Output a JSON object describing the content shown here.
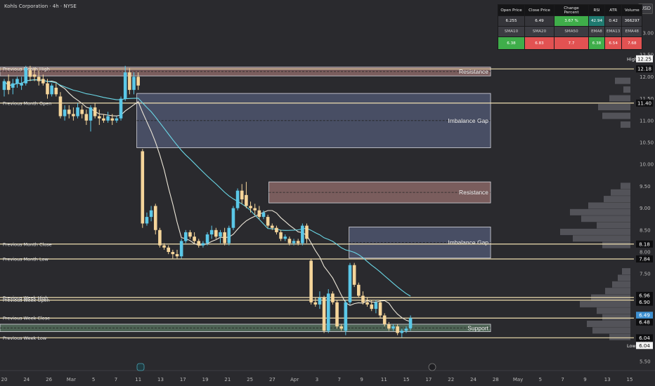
{
  "header": {
    "title": "Kohls Corporation · 4h · NYSE",
    "currency_label": "USD"
  },
  "stats_table": {
    "headers1": [
      "Open Price",
      "Close Price",
      "Change Percent",
      "RSI",
      "ATR",
      "Volume"
    ],
    "values1": [
      "6.255",
      "6.49",
      "3.67 %",
      "42.94",
      "0.42",
      "366297"
    ],
    "headers2": [
      "SMA10",
      "SMA20",
      "SMA50",
      "EMA8",
      "EMA13",
      "EMA48"
    ],
    "values2": [
      "6.38",
      "6.83",
      "7.7",
      "6.38",
      "6.54",
      "7.68"
    ]
  },
  "colors": {
    "background": "#2a2a2e",
    "bull": "#5bc8e8",
    "bear": "#f5d59a",
    "level_line": "#f0dfb0",
    "resistance_zone": "#c98f8b",
    "imbalance_zone": "#8291c9",
    "support_zone": "#6f9b7a",
    "sma_short": "#ece6d8",
    "sma_long": "#6ad7e6"
  },
  "chart_data": {
    "type": "candlestick",
    "ylim": [
      5.4,
      13.7
    ],
    "y_ticks": [
      13.0,
      12.5,
      12.0,
      11.5,
      11.0,
      10.5,
      10.0,
      9.5,
      9.0,
      8.5,
      8.0,
      7.5,
      7.0,
      6.5,
      6.0,
      5.5
    ],
    "x_tick_labels": [
      "20",
      "24",
      "26",
      "Mar",
      "5",
      "7",
      "11",
      "13",
      "17",
      "19",
      "21",
      "25",
      "27",
      "Apr",
      "3",
      "7",
      "9",
      "11",
      "15",
      "17",
      "22",
      "24",
      "28",
      "May",
      "5",
      "7",
      "9",
      "13",
      "15"
    ],
    "price_labels": [
      {
        "label": "High",
        "value": "12.25",
        "y": 12.25,
        "style": "white"
      },
      {
        "label": "",
        "value": "12.18",
        "y": 12.18,
        "style": "dark"
      },
      {
        "label": "",
        "value": "11.40",
        "y": 11.4,
        "style": "dark"
      },
      {
        "label": "",
        "value": "8.18",
        "y": 8.18,
        "style": "dark"
      },
      {
        "label": "",
        "value": "7.84",
        "y": 7.84,
        "style": "dark"
      },
      {
        "label": "",
        "value": "6.96",
        "y": 6.96,
        "style": "dark"
      },
      {
        "label": "",
        "value": "6.90",
        "y": 6.9,
        "style": "dark"
      },
      {
        "label": "",
        "value": "6.49",
        "y": 6.49,
        "style": "blue"
      },
      {
        "label": "",
        "value": "6.48",
        "y": 6.48,
        "style": "dark"
      },
      {
        "label": "",
        "value": "6.04",
        "y": 6.04,
        "style": "dark"
      },
      {
        "label": "Low",
        "value": "6.04",
        "y": 6.04,
        "style": "white"
      }
    ],
    "levels": [
      {
        "label": "Previous Month High",
        "y": 12.18
      },
      {
        "label": "Previous Month Open",
        "y": 11.4
      },
      {
        "label": "Previous Month Close",
        "y": 8.18
      },
      {
        "label": "Previous Month Low",
        "y": 7.84
      },
      {
        "label": "Previous Week High",
        "y": 6.96
      },
      {
        "label": "Previous Week Open",
        "y": 6.9
      },
      {
        "label": "Previous Week Close",
        "y": 6.49
      },
      {
        "label": "Previous Week Low",
        "y": 6.04
      }
    ],
    "zones": [
      {
        "label": "Resistance",
        "kind": "resistance",
        "x0": 0,
        "x1": 104,
        "y_top": 12.22,
        "y_bottom": 12.02
      },
      {
        "label": "Imbalance Gap",
        "kind": "imbalance",
        "x0": 29,
        "x1": 104,
        "y_top": 11.62,
        "y_bottom": 10.38
      },
      {
        "label": "Resistance",
        "kind": "resistance",
        "x0": 57,
        "x1": 104,
        "y_top": 9.6,
        "y_bottom": 9.12
      },
      {
        "label": "Imbalance Gap",
        "kind": "imbalance",
        "x0": 74,
        "x1": 104,
        "y_top": 8.57,
        "y_bottom": 7.86
      },
      {
        "label": "Support",
        "kind": "support",
        "x0": 0,
        "x1": 104,
        "y_top": 6.35,
        "y_bottom": 6.18
      }
    ],
    "candles": [
      {
        "o": 11.7,
        "h": 11.95,
        "l": 11.55,
        "c": 11.9
      },
      {
        "o": 11.9,
        "h": 12.05,
        "l": 11.6,
        "c": 11.7
      },
      {
        "o": 11.75,
        "h": 11.95,
        "l": 11.6,
        "c": 11.85
      },
      {
        "o": 11.85,
        "h": 12.0,
        "l": 11.75,
        "c": 11.95
      },
      {
        "o": 11.8,
        "h": 12.0,
        "l": 11.7,
        "c": 11.85
      },
      {
        "o": 11.85,
        "h": 12.25,
        "l": 11.8,
        "c": 12.2
      },
      {
        "o": 12.15,
        "h": 12.25,
        "l": 11.9,
        "c": 12.0
      },
      {
        "o": 12.05,
        "h": 12.2,
        "l": 11.9,
        "c": 12.0
      },
      {
        "o": 12.0,
        "h": 12.15,
        "l": 11.8,
        "c": 11.9
      },
      {
        "o": 11.95,
        "h": 12.05,
        "l": 11.8,
        "c": 11.85
      },
      {
        "o": 11.85,
        "h": 11.95,
        "l": 11.5,
        "c": 11.6
      },
      {
        "o": 11.6,
        "h": 11.85,
        "l": 11.55,
        "c": 11.8
      },
      {
        "o": 11.75,
        "h": 11.85,
        "l": 11.55,
        "c": 11.6
      },
      {
        "o": 11.55,
        "h": 11.65,
        "l": 11.05,
        "c": 11.1
      },
      {
        "o": 11.1,
        "h": 11.35,
        "l": 11.0,
        "c": 11.25
      },
      {
        "o": 11.25,
        "h": 11.35,
        "l": 11.05,
        "c": 11.15
      },
      {
        "o": 11.15,
        "h": 11.3,
        "l": 11.0,
        "c": 11.1
      },
      {
        "o": 11.1,
        "h": 11.4,
        "l": 11.05,
        "c": 11.3
      },
      {
        "o": 11.25,
        "h": 11.35,
        "l": 11.05,
        "c": 11.15
      },
      {
        "o": 11.15,
        "h": 11.25,
        "l": 10.9,
        "c": 11.0
      },
      {
        "o": 11.0,
        "h": 11.35,
        "l": 10.75,
        "c": 11.3
      },
      {
        "o": 11.3,
        "h": 11.4,
        "l": 11.05,
        "c": 11.1
      },
      {
        "o": 11.1,
        "h": 11.25,
        "l": 10.9,
        "c": 11.05
      },
      {
        "o": 11.05,
        "h": 11.15,
        "l": 10.95,
        "c": 11.0
      },
      {
        "o": 11.0,
        "h": 11.2,
        "l": 10.95,
        "c": 11.1
      },
      {
        "o": 11.05,
        "h": 11.15,
        "l": 10.9,
        "c": 11.0
      },
      {
        "o": 11.0,
        "h": 11.1,
        "l": 10.95,
        "c": 11.05
      },
      {
        "o": 11.05,
        "h": 11.55,
        "l": 11.0,
        "c": 11.5
      },
      {
        "o": 11.5,
        "h": 12.25,
        "l": 11.45,
        "c": 12.1
      },
      {
        "o": 12.1,
        "h": 12.2,
        "l": 11.6,
        "c": 11.7
      },
      {
        "o": 11.7,
        "h": 12.1,
        "l": 11.6,
        "c": 12.0
      },
      {
        "o": 12.0,
        "h": 12.1,
        "l": 11.7,
        "c": 11.8
      },
      {
        "o": 10.3,
        "h": 10.35,
        "l": 8.55,
        "c": 8.65
      },
      {
        "o": 8.65,
        "h": 8.9,
        "l": 8.6,
        "c": 8.8
      },
      {
        "o": 8.8,
        "h": 9.05,
        "l": 8.7,
        "c": 8.95
      },
      {
        "o": 9.05,
        "h": 9.1,
        "l": 8.4,
        "c": 8.5
      },
      {
        "o": 8.5,
        "h": 8.55,
        "l": 8.1,
        "c": 8.15
      },
      {
        "o": 8.15,
        "h": 8.2,
        "l": 8.05,
        "c": 8.1
      },
      {
        "o": 8.1,
        "h": 8.15,
        "l": 7.95,
        "c": 8.0
      },
      {
        "o": 8.0,
        "h": 8.05,
        "l": 7.85,
        "c": 7.95
      },
      {
        "o": 7.95,
        "h": 8.05,
        "l": 7.85,
        "c": 7.9
      },
      {
        "o": 7.9,
        "h": 8.3,
        "l": 7.85,
        "c": 8.25
      },
      {
        "o": 8.25,
        "h": 8.5,
        "l": 8.2,
        "c": 8.45
      },
      {
        "o": 8.45,
        "h": 8.5,
        "l": 8.3,
        "c": 8.35
      },
      {
        "o": 8.35,
        "h": 8.45,
        "l": 8.2,
        "c": 8.25
      },
      {
        "o": 8.25,
        "h": 8.3,
        "l": 8.1,
        "c": 8.15
      },
      {
        "o": 8.15,
        "h": 8.25,
        "l": 8.1,
        "c": 8.2
      },
      {
        "o": 8.2,
        "h": 8.45,
        "l": 8.15,
        "c": 8.4
      },
      {
        "o": 8.4,
        "h": 8.6,
        "l": 8.3,
        "c": 8.5
      },
      {
        "o": 8.5,
        "h": 8.55,
        "l": 8.3,
        "c": 8.35
      },
      {
        "o": 8.35,
        "h": 8.5,
        "l": 8.2,
        "c": 8.45
      },
      {
        "o": 8.45,
        "h": 8.55,
        "l": 8.15,
        "c": 8.2
      },
      {
        "o": 8.2,
        "h": 8.6,
        "l": 8.15,
        "c": 8.55
      },
      {
        "o": 8.55,
        "h": 9.05,
        "l": 8.5,
        "c": 9.0
      },
      {
        "o": 9.0,
        "h": 9.45,
        "l": 8.95,
        "c": 9.4
      },
      {
        "o": 9.4,
        "h": 9.55,
        "l": 9.1,
        "c": 9.2
      },
      {
        "o": 9.3,
        "h": 9.6,
        "l": 9.0,
        "c": 9.05
      },
      {
        "o": 9.05,
        "h": 9.15,
        "l": 8.9,
        "c": 9.0
      },
      {
        "o": 9.0,
        "h": 9.1,
        "l": 8.85,
        "c": 8.95
      },
      {
        "o": 8.95,
        "h": 9.05,
        "l": 8.75,
        "c": 8.8
      },
      {
        "o": 8.8,
        "h": 8.95,
        "l": 8.75,
        "c": 8.9
      },
      {
        "o": 8.8,
        "h": 8.85,
        "l": 8.55,
        "c": 8.6
      },
      {
        "o": 8.6,
        "h": 8.65,
        "l": 8.5,
        "c": 8.55
      },
      {
        "o": 8.55,
        "h": 8.6,
        "l": 8.4,
        "c": 8.45
      },
      {
        "o": 8.45,
        "h": 8.5,
        "l": 8.25,
        "c": 8.3
      },
      {
        "o": 8.3,
        "h": 8.4,
        "l": 8.25,
        "c": 8.35
      },
      {
        "o": 8.3,
        "h": 8.35,
        "l": 8.15,
        "c": 8.2
      },
      {
        "o": 8.2,
        "h": 8.3,
        "l": 8.15,
        "c": 8.25
      },
      {
        "o": 8.25,
        "h": 8.3,
        "l": 8.15,
        "c": 8.2
      },
      {
        "o": 8.2,
        "h": 8.65,
        "l": 8.15,
        "c": 8.6
      },
      {
        "o": 8.6,
        "h": 8.65,
        "l": 8.2,
        "c": 8.3
      },
      {
        "o": 7.8,
        "h": 7.85,
        "l": 6.8,
        "c": 6.85
      },
      {
        "o": 6.85,
        "h": 6.95,
        "l": 6.75,
        "c": 6.8
      },
      {
        "o": 6.8,
        "h": 7.1,
        "l": 6.7,
        "c": 6.95
      },
      {
        "o": 6.95,
        "h": 7.0,
        "l": 6.15,
        "c": 6.2
      },
      {
        "o": 6.2,
        "h": 7.15,
        "l": 6.15,
        "c": 7.05
      },
      {
        "o": 7.05,
        "h": 7.1,
        "l": 6.8,
        "c": 6.85
      },
      {
        "o": 6.85,
        "h": 6.9,
        "l": 6.25,
        "c": 6.3
      },
      {
        "o": 6.3,
        "h": 6.35,
        "l": 6.2,
        "c": 6.25
      },
      {
        "o": 6.2,
        "h": 6.9,
        "l": 6.1,
        "c": 6.85
      },
      {
        "o": 6.85,
        "h": 7.75,
        "l": 6.8,
        "c": 7.7
      },
      {
        "o": 7.7,
        "h": 7.75,
        "l": 7.2,
        "c": 7.25
      },
      {
        "o": 7.25,
        "h": 7.3,
        "l": 6.95,
        "c": 7.0
      },
      {
        "o": 7.0,
        "h": 7.1,
        "l": 6.8,
        "c": 6.85
      },
      {
        "o": 6.85,
        "h": 6.95,
        "l": 6.75,
        "c": 6.8
      },
      {
        "o": 6.8,
        "h": 6.9,
        "l": 6.65,
        "c": 6.7
      },
      {
        "o": 6.7,
        "h": 6.9,
        "l": 6.6,
        "c": 6.85
      },
      {
        "o": 6.85,
        "h": 6.9,
        "l": 6.5,
        "c": 6.55
      },
      {
        "o": 6.55,
        "h": 6.6,
        "l": 6.3,
        "c": 6.35
      },
      {
        "o": 6.35,
        "h": 6.4,
        "l": 6.2,
        "c": 6.25
      },
      {
        "o": 6.25,
        "h": 6.35,
        "l": 6.2,
        "c": 6.3
      },
      {
        "o": 6.3,
        "h": 6.35,
        "l": 6.1,
        "c": 6.15
      },
      {
        "o": 6.15,
        "h": 6.25,
        "l": 6.05,
        "c": 6.2
      },
      {
        "o": 6.2,
        "h": 6.3,
        "l": 6.15,
        "c": 6.25
      },
      {
        "o": 6.255,
        "h": 6.55,
        "l": 6.2,
        "c": 6.49
      }
    ],
    "volume_profile": [
      {
        "y": 11.9,
        "w": 22
      },
      {
        "y": 11.7,
        "w": 10
      },
      {
        "y": 11.5,
        "w": 30
      },
      {
        "y": 11.3,
        "w": 46
      },
      {
        "y": 11.1,
        "w": 40
      },
      {
        "y": 10.9,
        "w": 14
      },
      {
        "y": 9.5,
        "w": 14
      },
      {
        "y": 9.35,
        "w": 28
      },
      {
        "y": 9.2,
        "w": 38
      },
      {
        "y": 9.05,
        "w": 60
      },
      {
        "y": 8.9,
        "w": 86
      },
      {
        "y": 8.75,
        "w": 70
      },
      {
        "y": 8.6,
        "w": 48
      },
      {
        "y": 8.45,
        "w": 100
      },
      {
        "y": 8.3,
        "w": 82
      },
      {
        "y": 8.15,
        "w": 40
      },
      {
        "y": 7.55,
        "w": 12
      },
      {
        "y": 7.4,
        "w": 18
      },
      {
        "y": 7.25,
        "w": 26
      },
      {
        "y": 7.1,
        "w": 36
      },
      {
        "y": 6.95,
        "w": 56
      },
      {
        "y": 6.8,
        "w": 72
      },
      {
        "y": 6.65,
        "w": 48
      },
      {
        "y": 6.5,
        "w": 40
      },
      {
        "y": 6.35,
        "w": 62
      },
      {
        "y": 6.2,
        "w": 54
      },
      {
        "y": 6.05,
        "w": 30
      }
    ]
  }
}
